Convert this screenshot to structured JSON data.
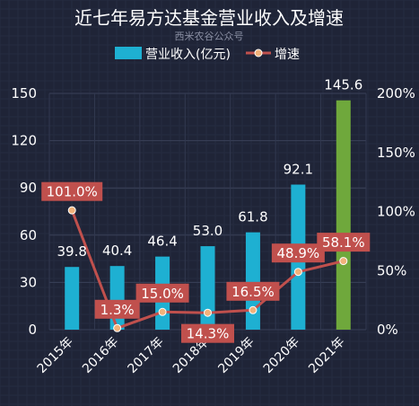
{
  "chart_data": {
    "type": "bar",
    "title": "近七年易方达基金营业收入及增速",
    "subtitle": "西米农谷公众号",
    "categories": [
      "2015年",
      "2016年",
      "2017年",
      "2018年",
      "2019年",
      "2020年",
      "2021年"
    ],
    "series": [
      {
        "name": "营业收入(亿元)",
        "type": "bar",
        "axis": "left",
        "values": [
          39.8,
          40.4,
          46.4,
          53.0,
          61.8,
          92.1,
          145.6
        ],
        "value_labels": [
          "39.8",
          "40.4",
          "46.4",
          "53.0",
          "61.8",
          "92.1",
          "145.6"
        ]
      },
      {
        "name": "增速",
        "type": "line",
        "axis": "right",
        "values": [
          101.0,
          1.3,
          15.0,
          14.3,
          16.5,
          48.9,
          58.1
        ],
        "value_labels": [
          "101.0%",
          "1.3%",
          "15.0%",
          "14.3%",
          "16.5%",
          "48.9%",
          "58.1%"
        ]
      }
    ],
    "y_left": {
      "min": 0,
      "max": 150,
      "ticks": [
        "0",
        "30",
        "60",
        "90",
        "120",
        "150"
      ]
    },
    "y_right": {
      "min": 0,
      "max": 200,
      "ticks": [
        "0%",
        "50%",
        "100%",
        "150%",
        "200%"
      ]
    },
    "grid": true,
    "legend_position": "top-center",
    "colors": {
      "bar": "#1eb0d2",
      "bar_highlight": "#6fa83c",
      "line": "#c0504d",
      "marker": "#f2b27a",
      "label_box": "#c0504d"
    }
  }
}
